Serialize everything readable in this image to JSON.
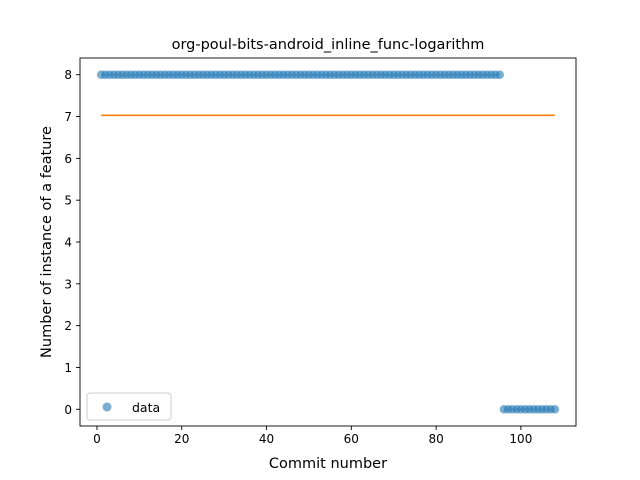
{
  "chart_data": {
    "type": "scatter",
    "title": "org-poul-bits-android_inline_func-logarithm",
    "xlabel": "Commit number",
    "ylabel": "Number of instance of a feature",
    "xlim": [
      -4,
      113
    ],
    "ylim": [
      -0.4,
      8.4
    ],
    "x_ticks": [
      0,
      20,
      40,
      60,
      80,
      100
    ],
    "y_ticks": [
      0,
      1,
      2,
      3,
      4,
      5,
      6,
      7,
      8
    ],
    "grid": false,
    "legend_position": "lower-left",
    "series": [
      {
        "name": "data",
        "kind": "scatter",
        "color": "#1f77b4",
        "segments": [
          {
            "x_start": 1,
            "x_end": 95,
            "y": 8
          },
          {
            "x_start": 96,
            "x_end": 108,
            "y": 0
          }
        ]
      },
      {
        "kind": "line",
        "color": "#ff7f0e",
        "x": [
          1,
          108
        ],
        "y": [
          7.03,
          7.03
        ]
      }
    ]
  }
}
